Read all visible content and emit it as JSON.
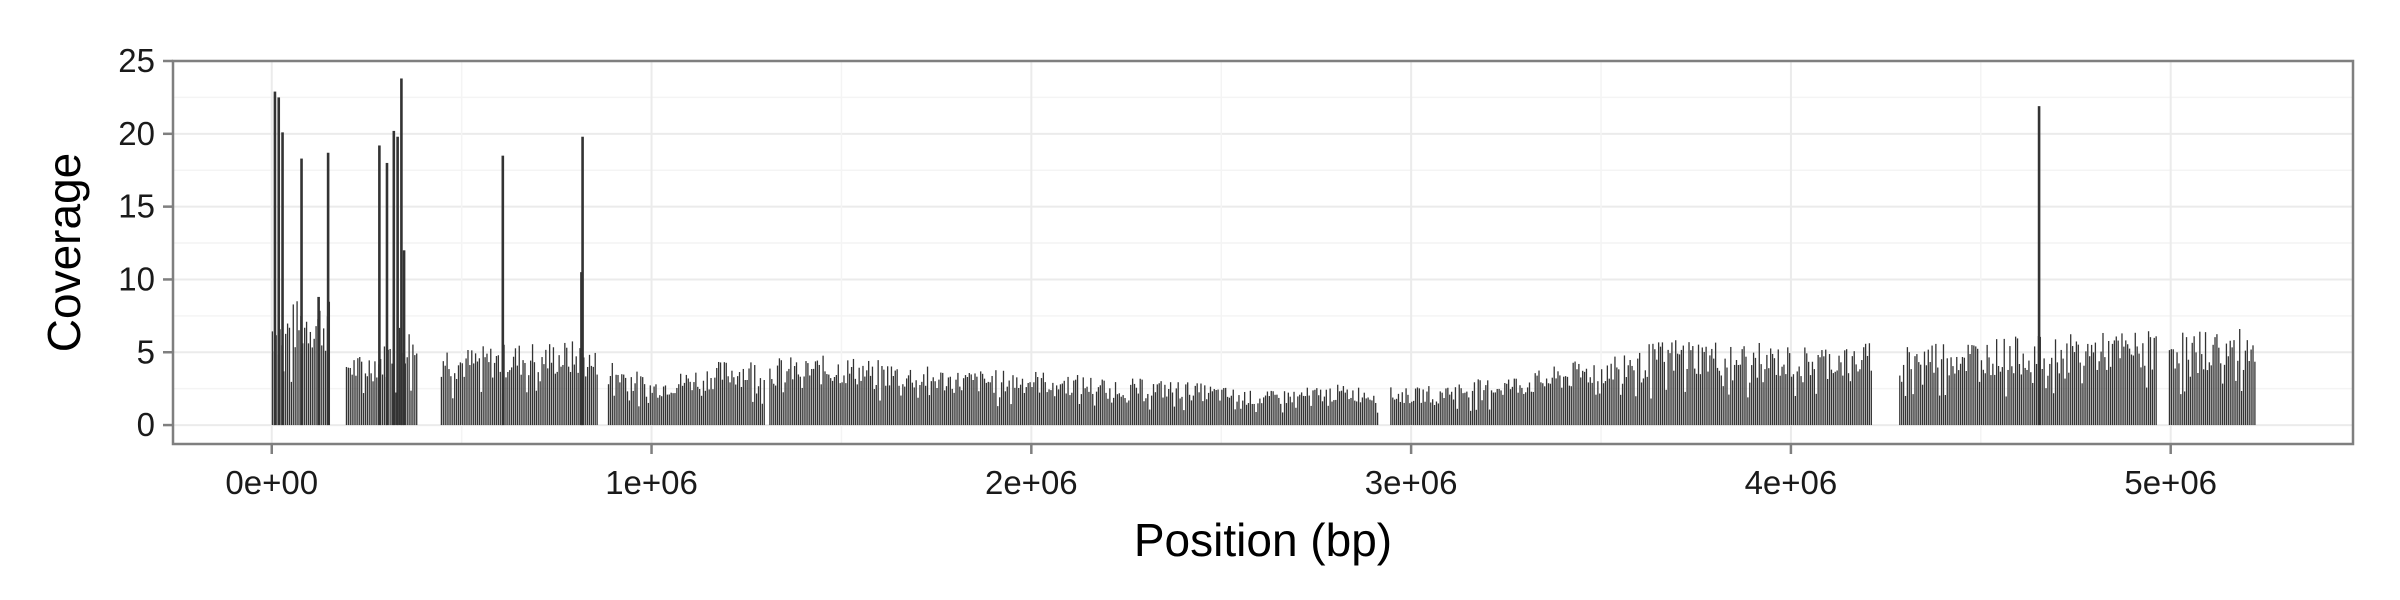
{
  "chart_data": {
    "type": "bar",
    "title": "",
    "xlabel": "Position (bp)",
    "ylabel": "Coverage",
    "xlim": [
      -260000,
      5480000
    ],
    "ylim": [
      -1.3,
      25
    ],
    "x_ticks": [
      0,
      1000000,
      2000000,
      3000000,
      4000000,
      5000000
    ],
    "x_tick_labels": [
      "0e+00",
      "1e+06",
      "2e+06",
      "3e+06",
      "4e+06",
      "5e+06"
    ],
    "y_ticks": [
      0,
      5,
      10,
      15,
      20,
      25
    ],
    "y_tick_labels": [
      "0",
      "5",
      "10",
      "15",
      "20",
      "25"
    ],
    "grid": true,
    "legend": "none",
    "bar_color": "#333333",
    "panel_border_color": "#7f7f7f",
    "grid_color": "#ebebeb",
    "profile_points": [
      [
        0,
        6.5
      ],
      [
        30000,
        6.2
      ],
      [
        60000,
        6.8
      ],
      [
        100000,
        7.0
      ],
      [
        150000,
        6.8
      ],
      [
        190000,
        4.2
      ],
      [
        230000,
        3.8
      ],
      [
        300000,
        4.5
      ],
      [
        340000,
        5.8
      ],
      [
        380000,
        5.0
      ],
      [
        440000,
        4.6
      ],
      [
        500000,
        4.2
      ],
      [
        600000,
        4.4
      ],
      [
        700000,
        4.6
      ],
      [
        800000,
        4.6
      ],
      [
        900000,
        3.6
      ],
      [
        1000000,
        2.5
      ],
      [
        1200000,
        3.6
      ],
      [
        1500000,
        3.8
      ],
      [
        1800000,
        3.0
      ],
      [
        2000000,
        3.0
      ],
      [
        2200000,
        2.6
      ],
      [
        2400000,
        2.4
      ],
      [
        2600000,
        1.8
      ],
      [
        2800000,
        2.2
      ],
      [
        3000000,
        2.0
      ],
      [
        3100000,
        2.3
      ],
      [
        3300000,
        2.8
      ],
      [
        3500000,
        3.8
      ],
      [
        3700000,
        4.8
      ],
      [
        4000000,
        4.3
      ],
      [
        4300000,
        4.6
      ],
      [
        4600000,
        4.8
      ],
      [
        4800000,
        5.0
      ],
      [
        5000000,
        5.2
      ],
      [
        5200000,
        5.2
      ]
    ],
    "gaps": [
      [
        155000,
        190000
      ],
      [
        385000,
        440000
      ],
      [
        858000,
        880000
      ],
      [
        1300000,
        1306000
      ],
      [
        2915000,
        2940000
      ],
      [
        4215000,
        4280000
      ],
      [
        4965000,
        4990000
      ]
    ],
    "data_range": [
      0,
      5220000
    ],
    "peaks": [
      {
        "x": 5000,
        "y": 22.9
      },
      {
        "x": 15000,
        "y": 22.5
      },
      {
        "x": 25000,
        "y": 20.1
      },
      {
        "x": 75000,
        "y": 18.3
      },
      {
        "x": 120000,
        "y": 8.8
      },
      {
        "x": 145000,
        "y": 18.7
      },
      {
        "x": 280000,
        "y": 19.2
      },
      {
        "x": 300000,
        "y": 18.0
      },
      {
        "x": 318000,
        "y": 20.2
      },
      {
        "x": 328000,
        "y": 19.8
      },
      {
        "x": 338000,
        "y": 23.8
      },
      {
        "x": 345000,
        "y": 12.0
      },
      {
        "x": 605000,
        "y": 18.5
      },
      {
        "x": 815000,
        "y": 19.8
      },
      {
        "x": 812000,
        "y": 10.5
      },
      {
        "x": 4650000,
        "y": 21.9
      }
    ]
  }
}
